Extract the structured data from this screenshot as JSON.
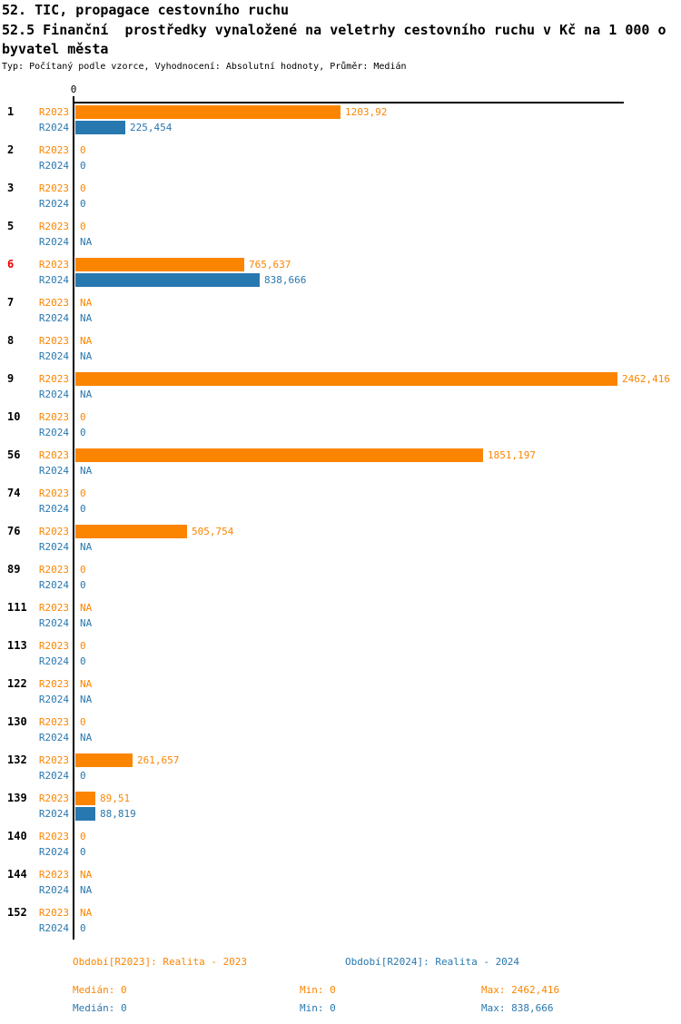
{
  "header": {
    "title": "52. TIC, propagace cestovního ruchu",
    "subtitle_line1": "52.5 Finanční  prostředky vynaložené na veletrhy cestovního ruchu v Kč na 1 000 o",
    "subtitle_line2": "byvatel města",
    "meta": "Typ: Počítaný podle vzorce, Vyhodnocení: Absolutní hodnoty, Průměr: Medián"
  },
  "colors": {
    "r2023": "#FB8500",
    "r2024": "#2878B0",
    "highlight_category": "#EE0000",
    "axis": "#000000"
  },
  "axis": {
    "zero_label": "0"
  },
  "chart_data": {
    "type": "bar",
    "orientation": "horizontal",
    "xlim": [
      0,
      2462.416
    ],
    "grid": false,
    "categories": [
      "1",
      "2",
      "3",
      "5",
      "6",
      "7",
      "8",
      "9",
      "10",
      "56",
      "74",
      "76",
      "89",
      "111",
      "113",
      "122",
      "130",
      "132",
      "139",
      "140",
      "144",
      "152"
    ],
    "highlighted_category": "6",
    "series": [
      {
        "name": "R2023",
        "legend": "Období[R2023]: Realita - 2023",
        "values": [
          1203.92,
          0,
          0,
          0,
          765.637,
          null,
          null,
          2462.416,
          0,
          1851.197,
          0,
          505.754,
          0,
          null,
          0,
          null,
          0,
          261.657,
          89.51,
          0,
          null,
          null
        ],
        "labels": [
          "1203,92",
          "0",
          "0",
          "0",
          "765,637",
          "NA",
          "NA",
          "2462,416",
          "0",
          "1851,197",
          "0",
          "505,754",
          "0",
          "NA",
          "0",
          "NA",
          "0",
          "261,657",
          "89,51",
          "0",
          "NA",
          "NA"
        ]
      },
      {
        "name": "R2024",
        "legend": "Období[R2024]: Realita - 2024",
        "values": [
          225.454,
          0,
          0,
          null,
          838.666,
          null,
          null,
          null,
          0,
          null,
          0,
          null,
          0,
          null,
          0,
          null,
          null,
          0,
          88.819,
          0,
          null,
          0
        ],
        "labels": [
          "225,454",
          "0",
          "0",
          "NA",
          "838,666",
          "NA",
          "NA",
          "NA",
          "0",
          "NA",
          "0",
          "NA",
          "0",
          "NA",
          "0",
          "NA",
          "NA",
          "0",
          "88,819",
          "0",
          "NA",
          "0"
        ]
      }
    ]
  },
  "footer": {
    "period_r2023": "Období[R2023]: Realita - 2023",
    "period_r2024": "Období[R2024]: Realita - 2024",
    "stats_r2023": {
      "median": "Medián: 0",
      "min": "Min: 0",
      "max": "Max: 2462,416"
    },
    "stats_r2024": {
      "median": "Medián: 0",
      "min": "Min: 0",
      "max": "Max: 838,666"
    }
  }
}
